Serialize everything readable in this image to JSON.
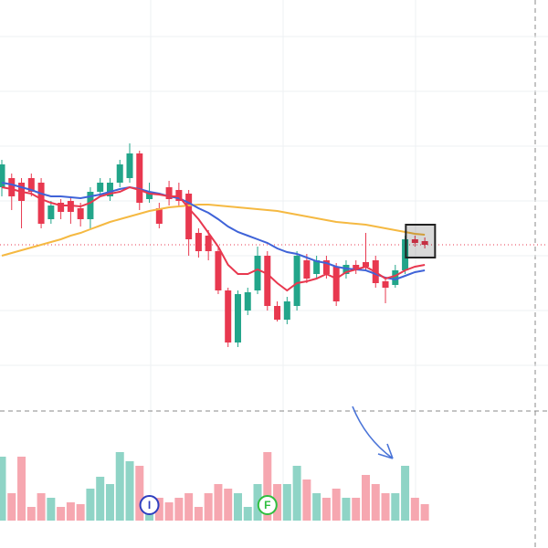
{
  "chart_data": {
    "type": "candlestick",
    "open": [
      245,
      255,
      250,
      255,
      250,
      210,
      228,
      230,
      222,
      210,
      240,
      235,
      250,
      255,
      282,
      232,
      222,
      245,
      242,
      238,
      195,
      192,
      175,
      132,
      75,
      110,
      132,
      170,
      115,
      100,
      115,
      165,
      150,
      165,
      158,
      150,
      160,
      163,
      165,
      142,
      138,
      154,
      188,
      186
    ],
    "close": [
      270,
      235,
      230,
      240,
      205,
      225,
      218,
      218,
      210,
      240,
      250,
      250,
      270,
      282,
      228,
      240,
      205,
      232,
      230,
      188,
      175,
      175,
      132,
      75,
      128,
      130,
      170,
      115,
      100,
      120,
      170,
      145,
      165,
      150,
      120,
      160,
      154,
      158,
      140,
      135,
      154,
      188,
      184,
      182
    ],
    "high": [
      275,
      260,
      255,
      260,
      255,
      230,
      232,
      235,
      228,
      245,
      255,
      255,
      275,
      293,
      285,
      250,
      228,
      252,
      250,
      242,
      200,
      198,
      180,
      135,
      132,
      135,
      180,
      175,
      120,
      125,
      175,
      172,
      170,
      170,
      162,
      165,
      165,
      195,
      170,
      145,
      160,
      192,
      192,
      190
    ],
    "low": [
      235,
      220,
      200,
      235,
      200,
      205,
      210,
      205,
      202,
      200,
      235,
      230,
      245,
      250,
      220,
      228,
      200,
      225,
      225,
      170,
      168,
      165,
      128,
      70,
      70,
      105,
      128,
      110,
      98,
      95,
      110,
      140,
      145,
      145,
      115,
      145,
      150,
      153,
      135,
      118,
      135,
      150,
      180,
      178
    ],
    "up_color": "#22a58a",
    "down_color": "#e8384f",
    "ylim": [
      0,
      450
    ],
    "yticks": [
      50,
      110,
      170,
      230,
      290,
      350,
      410
    ],
    "grid": true,
    "moving_averages": [
      {
        "color": "#f5b942",
        "values": [
          170,
          173,
          176,
          179,
          182,
          185,
          188,
          192,
          195,
          199,
          203,
          207,
          210,
          213,
          216,
          219,
          221,
          223,
          224,
          225,
          226,
          226,
          225,
          224,
          223,
          222,
          221,
          220,
          219,
          217,
          215,
          213,
          211,
          209,
          207,
          206,
          205,
          204,
          202,
          200,
          198,
          196,
          194,
          193
        ]
      },
      {
        "color": "#3f63d8",
        "values": [
          250,
          248,
          245,
          242,
          238,
          235,
          235,
          234,
          233,
          235,
          237,
          240,
          243,
          245,
          243,
          240,
          238,
          235,
          233,
          228,
          222,
          217,
          210,
          202,
          196,
          192,
          188,
          184,
          178,
          174,
          172,
          168,
          164,
          162,
          158,
          156,
          155,
          154,
          150,
          146,
          144,
          148,
          152,
          154
        ]
      },
      {
        "color": "#e8384f",
        "values": [
          245,
          243,
          240,
          238,
          232,
          228,
          225,
          225,
          224,
          228,
          235,
          238,
          240,
          245,
          242,
          238,
          237,
          235,
          235,
          222,
          210,
          195,
          180,
          160,
          150,
          150,
          155,
          150,
          140,
          132,
          140,
          142,
          145,
          150,
          145,
          152,
          155,
          158,
          152,
          145,
          148,
          154,
          158,
          160
        ]
      }
    ],
    "volume": [
      70,
      30,
      70,
      15,
      30,
      25,
      15,
      20,
      18,
      35,
      48,
      40,
      75,
      65,
      60,
      18,
      25,
      20,
      25,
      30,
      15,
      30,
      40,
      35,
      30,
      15,
      40,
      75,
      40,
      40,
      60,
      45,
      30,
      25,
      35,
      25,
      25,
      50,
      40,
      30,
      30,
      60,
      25,
      18
    ],
    "volume_up_color": "#8fd4c6",
    "volume_down_color": "#f6a7b0",
    "volume_ylim": [
      0,
      120
    ],
    "annotations": [
      {
        "text": "I",
        "index": 15,
        "color": "#2f3fbf"
      },
      {
        "text": "F",
        "index": 27,
        "color": "#2fbf3f"
      }
    ]
  }
}
